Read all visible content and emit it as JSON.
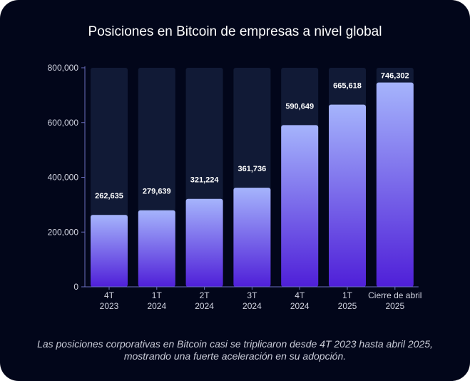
{
  "title": "Posiciones en Bitcoin de empresas a nivel global",
  "caption": "Las posiciones corporativas en Bitcoin casi se triplicaron desde 4T 2023 hasta abril 2025, mostrando una fuerte aceleración en su adopción.",
  "colors": {
    "background": "#02061a",
    "track": "#111a36",
    "bar_top": "#a5b4fc",
    "bar_bottom": "#4f1fd8",
    "axis": "#6b6fbf"
  },
  "chart_data": {
    "type": "bar",
    "title": "Posiciones en Bitcoin de empresas a nivel global",
    "xlabel": "",
    "ylabel": "",
    "ylim": [
      0,
      800000
    ],
    "yticks": [
      0,
      200000,
      400000,
      600000,
      800000
    ],
    "ytick_labels": [
      "0",
      "200,000",
      "400,000",
      "600,000",
      "800,000"
    ],
    "categories": [
      [
        "4T",
        "2023"
      ],
      [
        "1T",
        "2024"
      ],
      [
        "2T",
        "2024"
      ],
      [
        "3T",
        "2024"
      ],
      [
        "4T",
        "2024"
      ],
      [
        "1T",
        "2025"
      ],
      [
        "Cierre de abril",
        "2025"
      ]
    ],
    "values": [
      262635,
      279639,
      321224,
      361736,
      590649,
      665618,
      746302
    ],
    "value_labels": [
      "262,635",
      "279,639",
      "321,224",
      "361,736",
      "590,649",
      "665,618",
      "746,302"
    ],
    "grid": false,
    "legend": "none"
  }
}
